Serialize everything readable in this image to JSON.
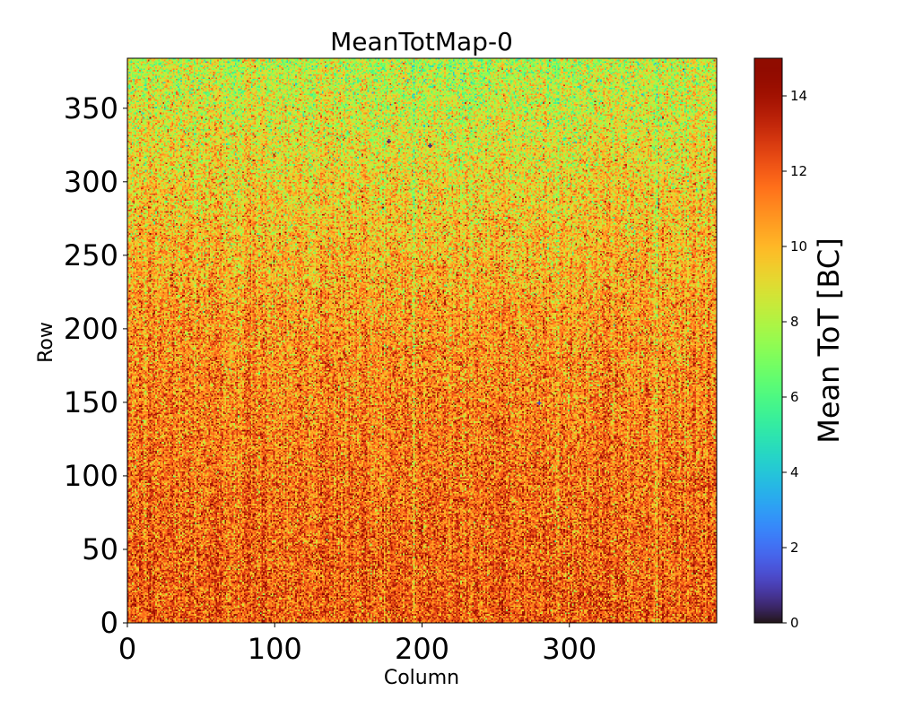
{
  "chart_data": {
    "type": "heatmap",
    "title": "MeanTotMap-0",
    "xlabel": "Column",
    "ylabel": "Row",
    "xlim": [
      0,
      400
    ],
    "ylim": [
      0,
      384
    ],
    "x_ticks": [
      0,
      100,
      200,
      300
    ],
    "y_ticks": [
      0,
      50,
      100,
      150,
      200,
      250,
      300,
      350
    ],
    "x_tick_labels": [
      "0",
      "100",
      "200",
      "300"
    ],
    "y_tick_labels": [
      "0",
      "50",
      "100",
      "150",
      "200",
      "250",
      "300",
      "350"
    ],
    "colorbar": {
      "label": "Mean ToT [BC]",
      "range": [
        0,
        15
      ],
      "ticks": [
        0,
        2,
        4,
        6,
        8,
        10,
        12,
        14
      ],
      "tick_labels": [
        "0",
        "2",
        "4",
        "6",
        "8",
        "10",
        "12",
        "14"
      ],
      "colormap": "turbo"
    },
    "summary": {
      "bulk_mean_tot_low_rows": 12,
      "bulk_mean_tot_high_rows": 9,
      "noise_spread": 2,
      "anomalous_pixels": [
        {
          "column": 177,
          "row": 327,
          "value": 0.5
        },
        {
          "column": 205,
          "row": 324,
          "value": 0.5
        },
        {
          "column": 279,
          "row": 149,
          "value": 1
        }
      ]
    }
  }
}
